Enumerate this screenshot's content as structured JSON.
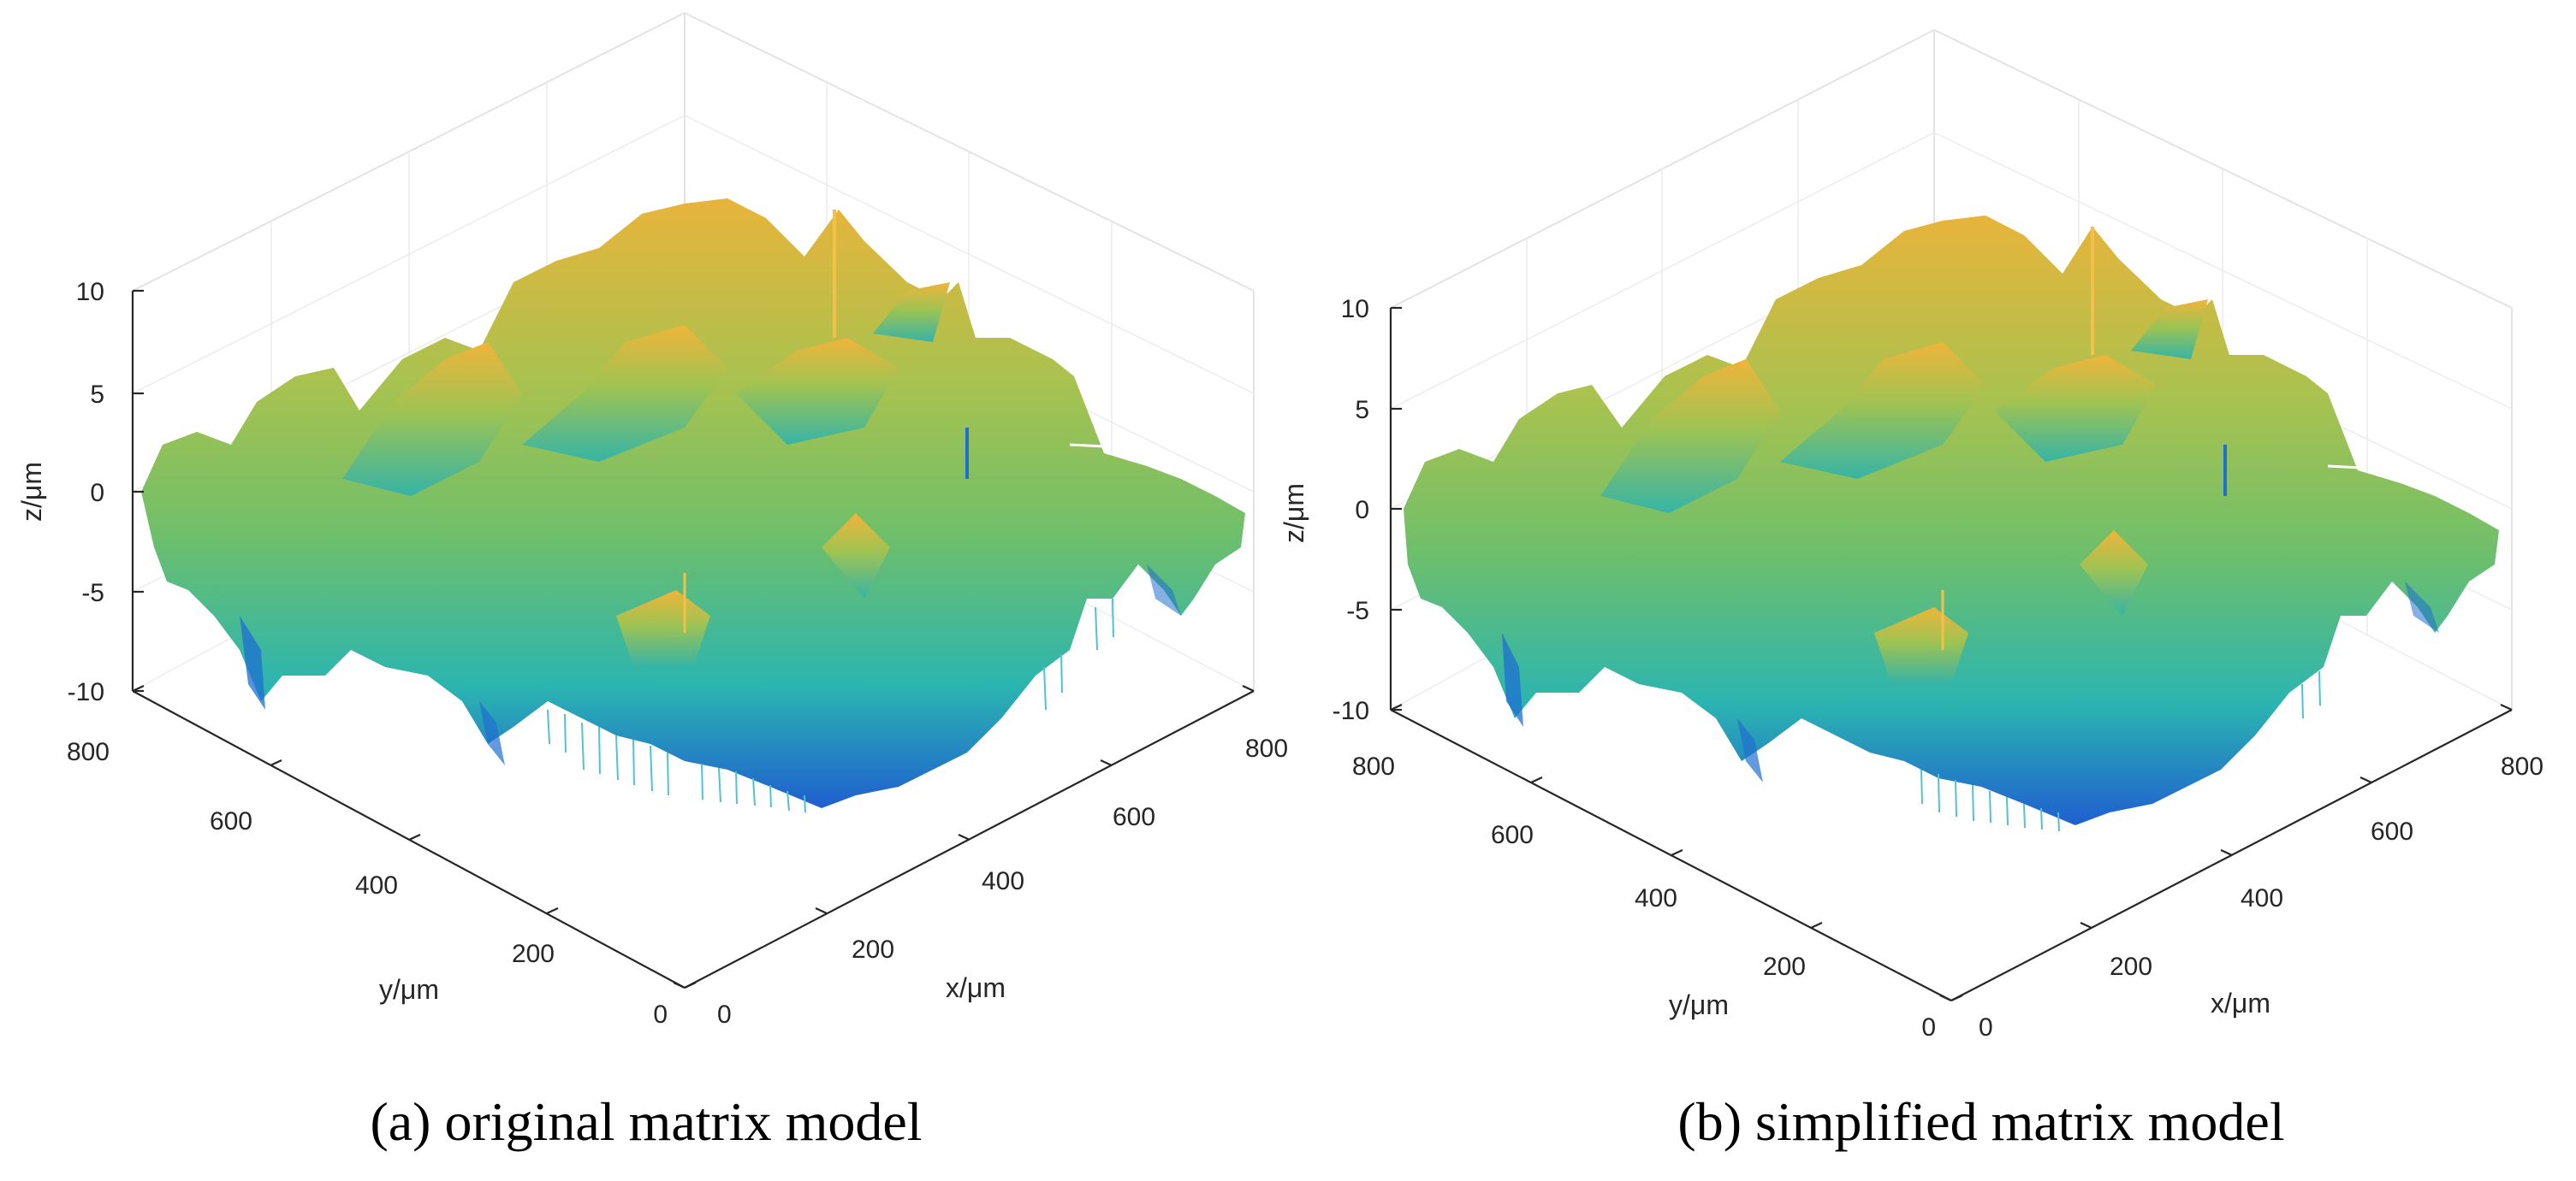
{
  "chart_data": [
    {
      "type": "surface",
      "panel": "a",
      "caption": "(a) original matrix model",
      "xlabel": "x/μm",
      "ylabel": "y/μm",
      "zlabel": "z/μm",
      "xlim": [
        0,
        800
      ],
      "ylim": [
        0,
        800
      ],
      "zlim": [
        -10,
        10
      ],
      "x_ticks": [
        "0",
        "200",
        "400",
        "600",
        "800"
      ],
      "y_ticks": [
        "0",
        "200",
        "400",
        "600",
        "800"
      ],
      "z_ticks": [
        "-10",
        "-5",
        "0",
        "5",
        "10"
      ],
      "colormap": [
        "#1f5fd0",
        "#2bb5b0",
        "#6fbf6a",
        "#a9c24f",
        "#e8b43a"
      ]
    },
    {
      "type": "surface",
      "panel": "b",
      "caption": "(b) simplified matrix model",
      "xlabel": "x/μm",
      "ylabel": "y/μm",
      "zlabel": "z/μm",
      "xlim": [
        0,
        800
      ],
      "ylim": [
        0,
        800
      ],
      "zlim": [
        -10,
        10
      ],
      "x_ticks": [
        "0",
        "200",
        "400",
        "600",
        "800"
      ],
      "y_ticks": [
        "0",
        "200",
        "400",
        "600",
        "800"
      ],
      "z_ticks": [
        "-10",
        "-5",
        "0",
        "5",
        "10"
      ],
      "colormap": [
        "#1f5fd0",
        "#2bb5b0",
        "#6fbf6a",
        "#a9c24f",
        "#e8b43a"
      ]
    }
  ]
}
